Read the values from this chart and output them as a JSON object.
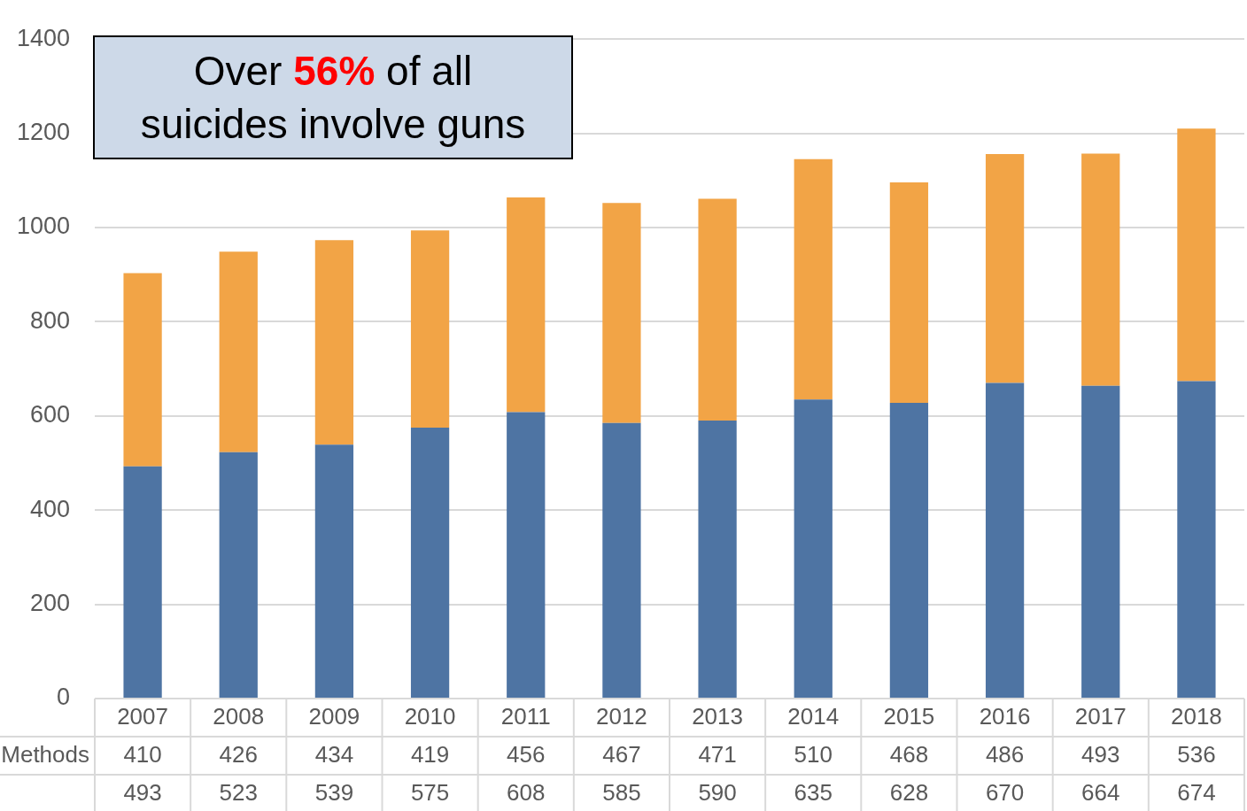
{
  "chart_data": {
    "type": "bar",
    "stacked": true,
    "categories": [
      "2007",
      "2008",
      "2009",
      "2010",
      "2011",
      "2012",
      "2013",
      "2014",
      "2015",
      "2016",
      "2017",
      "2018"
    ],
    "series": [
      {
        "color": "#4e74a3",
        "values": [
          493,
          523,
          539,
          575,
          608,
          585,
          590,
          635,
          628,
          670,
          664,
          674
        ]
      },
      {
        "name": "Methods",
        "color": "#f2a446",
        "values": [
          410,
          426,
          434,
          419,
          456,
          467,
          471,
          510,
          468,
          486,
          493,
          536
        ]
      }
    ],
    "ylim": [
      0,
      1400
    ],
    "yticks": [
      0,
      200,
      400,
      600,
      800,
      1000,
      1200,
      1400
    ],
    "grid": "y",
    "legend": false,
    "data_labels": true,
    "annotations": [
      "Over 56% of all suicides involve guns"
    ]
  }
}
